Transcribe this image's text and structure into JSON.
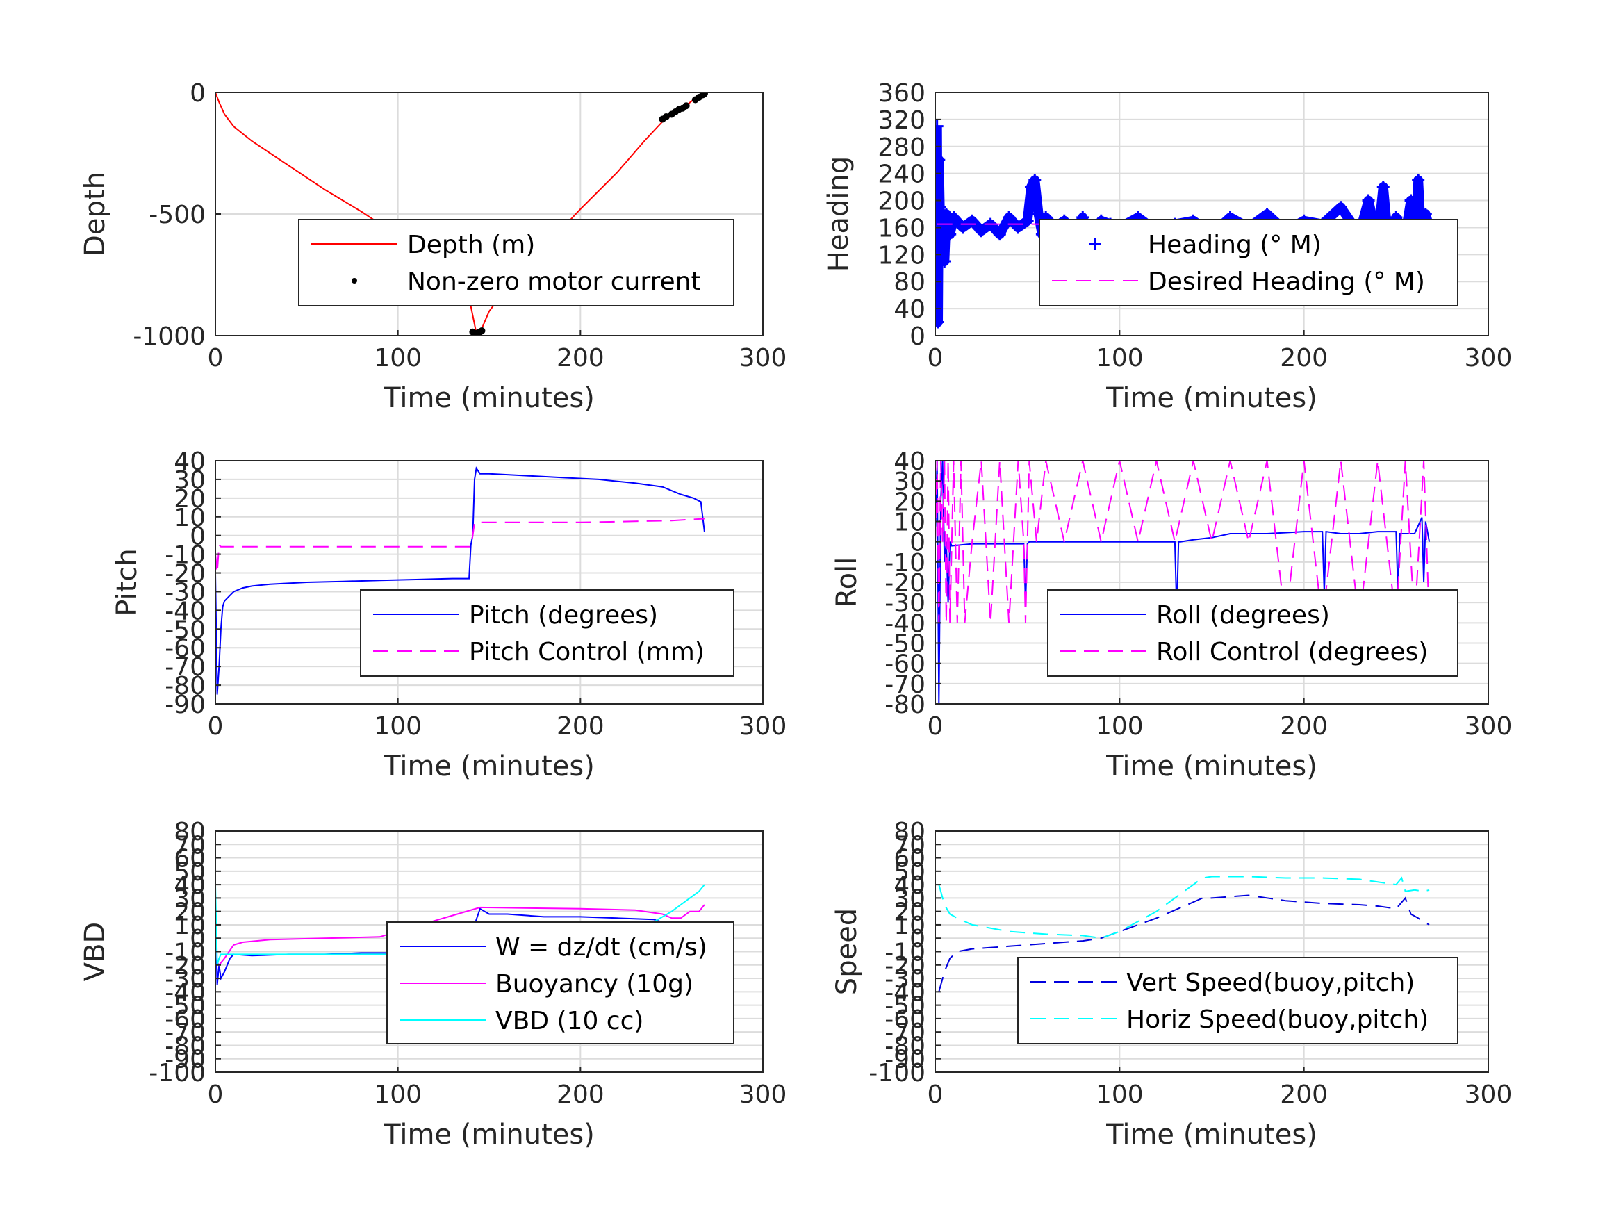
{
  "colors": {
    "depth": "#ff0000",
    "motor": "#000000",
    "blue": "#0000ff",
    "magenta": "#ff00ff",
    "cyan": "#00ffff",
    "dark_blue": "#0000dd"
  },
  "chart_data": [
    {
      "id": "depth",
      "type": "line",
      "xlabel": "Time (minutes)",
      "ylabel": "Depth",
      "xlim": [
        0,
        300
      ],
      "ylim": [
        -1000,
        0
      ],
      "xticks": [
        0,
        100,
        200,
        300
      ],
      "yticks": [
        0,
        -500,
        -1000
      ],
      "grid": true,
      "legend_position": "lower-right",
      "series": [
        {
          "name": "Depth (m)",
          "style": "line",
          "color": "#ff0000",
          "x": [
            0,
            2,
            5,
            10,
            20,
            40,
            60,
            80,
            100,
            120,
            135,
            140,
            143,
            146,
            150,
            160,
            180,
            200,
            220,
            235,
            245,
            255,
            262,
            268
          ],
          "y": [
            0,
            -40,
            -90,
            -140,
            -200,
            -300,
            -400,
            -490,
            -590,
            -700,
            -800,
            -880,
            -990,
            -970,
            -900,
            -800,
            -640,
            -480,
            -330,
            -200,
            -120,
            -70,
            -30,
            0
          ]
        },
        {
          "name": "Non-zero motor current",
          "style": "dots",
          "color": "#000000",
          "x": [
            141,
            142,
            143,
            144,
            145,
            146,
            245,
            247,
            250,
            252,
            254,
            256,
            258,
            263,
            265,
            267,
            268
          ],
          "y": [
            -985,
            -990,
            -992,
            -988,
            -985,
            -980,
            -110,
            -100,
            -90,
            -80,
            -70,
            -65,
            -55,
            -30,
            -20,
            -10,
            -5
          ]
        }
      ]
    },
    {
      "id": "heading",
      "type": "line",
      "xlabel": "Time (minutes)",
      "ylabel": "Heading",
      "xlim": [
        0,
        300
      ],
      "ylim": [
        0,
        360
      ],
      "xticks": [
        0,
        100,
        200,
        300
      ],
      "yticks": [
        0,
        40,
        80,
        120,
        160,
        200,
        240,
        280,
        320,
        360
      ],
      "grid": true,
      "legend_position": "lower-right",
      "series": [
        {
          "name": "Heading (° M)",
          "style": "plus",
          "color": "#0000ff",
          "x": [
            1,
            1.5,
            2,
            2.5,
            3,
            4,
            5,
            6,
            8,
            10,
            15,
            20,
            25,
            30,
            35,
            40,
            45,
            50,
            52,
            54,
            56,
            58,
            60,
            65,
            70,
            75,
            80,
            85,
            90,
            95,
            100,
            110,
            120,
            130,
            140,
            150,
            160,
            170,
            180,
            190,
            200,
            210,
            220,
            230,
            235,
            240,
            243,
            246,
            250,
            255,
            258,
            260,
            262,
            264,
            266,
            268
          ],
          "y": [
            310,
            20,
            260,
            190,
            140,
            120,
            110,
            180,
            150,
            175,
            160,
            170,
            155,
            165,
            150,
            175,
            160,
            170,
            220,
            230,
            180,
            150,
            175,
            160,
            170,
            150,
            175,
            130,
            170,
            165,
            160,
            175,
            155,
            165,
            170,
            150,
            175,
            160,
            180,
            155,
            170,
            165,
            190,
            150,
            200,
            140,
            220,
            130,
            175,
            150,
            200,
            110,
            230,
            120,
            180,
            160
          ]
        },
        {
          "name": "Desired Heading (° M)",
          "style": "dashed",
          "color": "#ff00ff",
          "x": [
            1,
            268
          ],
          "y": [
            165,
            165
          ]
        }
      ]
    },
    {
      "id": "pitch",
      "type": "line",
      "xlabel": "Time (minutes)",
      "ylabel": "Pitch",
      "xlim": [
        0,
        300
      ],
      "ylim": [
        -90,
        40
      ],
      "xticks": [
        0,
        100,
        200,
        300
      ],
      "yticks": [
        40,
        30,
        20,
        10,
        0,
        -10,
        -20,
        -30,
        -40,
        -50,
        -60,
        -70,
        -80,
        -90
      ],
      "grid": true,
      "legend_position": "lower-right",
      "series": [
        {
          "name": "Pitch (degrees)",
          "style": "line",
          "color": "#0000ff",
          "x": [
            0,
            1,
            2,
            3,
            4,
            5,
            8,
            10,
            15,
            20,
            30,
            50,
            70,
            90,
            110,
            130,
            139,
            140,
            141,
            142,
            143,
            145,
            150,
            170,
            190,
            210,
            230,
            245,
            255,
            262,
            266,
            268
          ],
          "y": [
            -20,
            -85,
            -70,
            -50,
            -38,
            -35,
            -32,
            -30,
            -28,
            -27,
            -26,
            -25,
            -24.5,
            -24,
            -23.5,
            -23,
            -23,
            -5,
            0,
            30,
            36,
            33,
            33,
            32,
            31,
            30,
            28,
            26,
            22,
            20,
            18,
            2
          ]
        },
        {
          "name": "Pitch Control (mm)",
          "style": "dashed",
          "color": "#ff00ff",
          "x": [
            0,
            1,
            2,
            3,
            10,
            140,
            141,
            142,
            145,
            200,
            250,
            268
          ],
          "y": [
            -10,
            -20,
            -5,
            -6,
            -6,
            -6,
            0,
            7,
            7,
            7,
            8,
            9
          ]
        }
      ]
    },
    {
      "id": "roll",
      "type": "line",
      "xlabel": "Time (minutes)",
      "ylabel": "Roll",
      "xlim": [
        0,
        300
      ],
      "ylim": [
        -80,
        40
      ],
      "xticks": [
        0,
        100,
        200,
        300
      ],
      "yticks": [
        40,
        30,
        20,
        10,
        0,
        -10,
        -20,
        -30,
        -40,
        -50,
        -60,
        -70,
        -80
      ],
      "grid": true,
      "legend_position": "lower-right",
      "series": [
        {
          "name": "Roll (degrees)",
          "style": "line",
          "color": "#0000ff",
          "x": [
            0,
            1,
            2,
            3,
            4,
            5,
            6,
            7,
            8,
            9,
            20,
            40,
            48,
            49,
            50,
            51,
            60,
            80,
            100,
            120,
            130,
            131,
            132,
            133,
            140,
            150,
            160,
            180,
            200,
            210,
            211,
            212,
            220,
            230,
            240,
            250,
            251,
            252,
            260,
            264,
            265,
            266,
            268
          ],
          "y": [
            0,
            40,
            -80,
            20,
            40,
            -10,
            0,
            -30,
            0,
            -2,
            -1,
            -1,
            -1,
            -30,
            -1,
            0,
            0,
            0,
            0,
            0,
            0,
            -35,
            0,
            0,
            1,
            2,
            4,
            4,
            5,
            5,
            -25,
            5,
            4,
            4,
            5,
            5,
            -25,
            4,
            4,
            12,
            -20,
            10,
            0
          ]
        },
        {
          "name": "Roll Control (degrees)",
          "style": "dashed",
          "color": "#ff00ff",
          "x": [
            0,
            1,
            2,
            3,
            4,
            5,
            6,
            7,
            8,
            10,
            12,
            14,
            16,
            20,
            25,
            30,
            35,
            40,
            45,
            48,
            49,
            50,
            51,
            55,
            60,
            70,
            80,
            90,
            100,
            110,
            120,
            130,
            140,
            150,
            160,
            170,
            180,
            190,
            200,
            210,
            220,
            230,
            240,
            250,
            255,
            260,
            265,
            268
          ],
          "y": [
            0,
            40,
            -40,
            40,
            0,
            40,
            -40,
            40,
            -40,
            40,
            -40,
            40,
            -40,
            0,
            40,
            -40,
            40,
            -40,
            40,
            0,
            -40,
            0,
            40,
            0,
            40,
            0,
            40,
            0,
            40,
            0,
            40,
            0,
            40,
            0,
            40,
            0,
            40,
            -40,
            40,
            -40,
            40,
            -40,
            40,
            -40,
            40,
            -40,
            40,
            -40
          ]
        }
      ]
    },
    {
      "id": "vbd",
      "type": "line",
      "xlabel": "Time (minutes)",
      "ylabel": "VBD",
      "xlim": [
        0,
        300
      ],
      "ylim": [
        -100,
        80
      ],
      "xticks": [
        0,
        100,
        200,
        300
      ],
      "yticks": [
        80,
        70,
        60,
        50,
        40,
        30,
        20,
        10,
        0,
        -10,
        -20,
        -30,
        -40,
        -50,
        -60,
        -70,
        -80,
        -90,
        -100
      ],
      "grid": true,
      "legend_position": "lower-right",
      "series": [
        {
          "name": "W = dz/dt (cm/s)",
          "style": "line",
          "color": "#0000ff",
          "x": [
            0,
            1,
            2,
            3,
            5,
            8,
            10,
            20,
            40,
            60,
            80,
            100,
            110,
            115,
            120,
            125,
            130,
            135,
            140,
            142,
            145,
            150,
            160,
            180,
            200,
            220,
            240,
            250,
            260,
            265,
            268
          ],
          "y": [
            30,
            -35,
            -20,
            -30,
            -25,
            -15,
            -12,
            -13,
            -12,
            -12,
            -11,
            -11,
            -15,
            -8,
            -15,
            -8,
            -15,
            -8,
            -10,
            10,
            22,
            18,
            18,
            16,
            16,
            15,
            14,
            10,
            8,
            5,
            3
          ]
        },
        {
          "name": "Buoyancy (10g)",
          "style": "line",
          "color": "#ff00ff",
          "x": [
            0,
            1,
            2,
            5,
            10,
            15,
            30,
            60,
            90,
            145,
            200,
            230,
            245,
            250,
            255,
            260,
            265,
            268
          ],
          "y": [
            0,
            -18,
            -20,
            -15,
            -5,
            -3,
            -1,
            0,
            1,
            23,
            22,
            21,
            18,
            15,
            15,
            20,
            20,
            25
          ]
        },
        {
          "name": "VBD (10 cc)",
          "style": "line",
          "color": "#00ffff",
          "x": [
            0,
            1,
            2,
            3,
            5,
            10,
            30,
            60,
            100,
            140,
            142,
            145,
            200,
            240,
            250,
            255,
            260,
            265,
            268
          ],
          "y": [
            40,
            -20,
            -15,
            -12,
            -12,
            -12,
            -12,
            -12,
            -12,
            -12,
            10,
            12,
            12,
            12,
            20,
            25,
            30,
            35,
            40
          ]
        }
      ]
    },
    {
      "id": "speed",
      "type": "line",
      "xlabel": "Time (minutes)",
      "ylabel": "Speed",
      "xlim": [
        0,
        300
      ],
      "ylim": [
        -100,
        80
      ],
      "xticks": [
        0,
        100,
        200,
        300
      ],
      "yticks": [
        80,
        70,
        60,
        50,
        40,
        30,
        20,
        10,
        0,
        -10,
        -20,
        -30,
        -40,
        -50,
        -60,
        -70,
        -80,
        -90,
        -100
      ],
      "grid": true,
      "legend_position": "lower-right",
      "series": [
        {
          "name": "Vert Speed(buoy,pitch)",
          "style": "dashed",
          "color": "#0000dd",
          "x": [
            2,
            3,
            5,
            8,
            12,
            20,
            40,
            60,
            80,
            90,
            100,
            120,
            145,
            150,
            170,
            190,
            210,
            230,
            240,
            250,
            255,
            258,
            262,
            265,
            268
          ],
          "y": [
            -40,
            -35,
            -25,
            -15,
            -10,
            -8,
            -6,
            -4,
            -2,
            0,
            5,
            15,
            30,
            30,
            32,
            28,
            26,
            25,
            24,
            22,
            30,
            18,
            15,
            12,
            10
          ]
        },
        {
          "name": "Horiz Speed(buoy,pitch)",
          "style": "dashed",
          "color": "#00ffff",
          "x": [
            2,
            3,
            5,
            8,
            12,
            20,
            40,
            60,
            80,
            90,
            100,
            120,
            145,
            150,
            170,
            190,
            210,
            230,
            240,
            250,
            253,
            255,
            260,
            265,
            268
          ],
          "y": [
            40,
            35,
            25,
            18,
            15,
            10,
            5,
            3,
            2,
            0,
            5,
            20,
            45,
            46,
            46,
            45,
            45,
            44,
            42,
            40,
            45,
            35,
            36,
            35,
            36
          ]
        }
      ]
    }
  ]
}
